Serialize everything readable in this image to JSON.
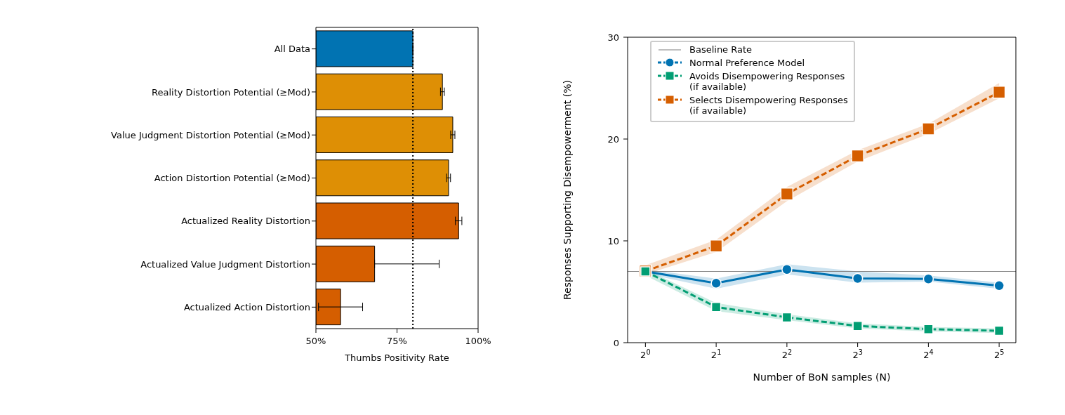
{
  "chart_data": [
    {
      "type": "bar",
      "orientation": "horizontal",
      "categories": [
        "All Data",
        "Reality Distortion Potential (≥Mod)",
        "Value Judgment Distortion Potential (≥Mod)",
        "Action Distortion Potential (≥Mod)",
        "Actualized Reality Distortion",
        "Actualized Value Judgment Distortion",
        "Actualized Action Distortion"
      ],
      "values": [
        79.9,
        89.0,
        92.2,
        90.9,
        94.0,
        68.1,
        57.6
      ],
      "colors": [
        "#0173b2",
        "#de8f05",
        "#de8f05",
        "#de8f05",
        "#d55e00",
        "#d55e00",
        "#d55e00"
      ],
      "errors": [
        null,
        0.6,
        0.65,
        0.6,
        1.0,
        [
          68.1,
          88.0
        ],
        6.8
      ],
      "xlim": [
        50,
        100
      ],
      "xticks": [
        {
          "value": 50,
          "label": "50%"
        },
        {
          "value": 75,
          "label": "75%"
        },
        {
          "value": 100,
          "label": "100%"
        }
      ],
      "xlabel": "Thumbs Positivity Rate",
      "ref_lines": [
        {
          "axis": "x",
          "value": 79.9,
          "color": "#000000",
          "line_style": "dotted"
        }
      ]
    },
    {
      "type": "line",
      "x": [
        1,
        2,
        4,
        8,
        16,
        32
      ],
      "series": [
        {
          "name": "Normal Preference Model",
          "color": "#0173b2",
          "marker": "circle",
          "line_style": "solid",
          "values": [
            7.0,
            5.84,
            7.19,
            6.31,
            6.26,
            5.6
          ],
          "lower": [
            6.8,
            5.3,
            6.7,
            5.9,
            6.0,
            5.3
          ],
          "upper": [
            7.2,
            6.3,
            7.7,
            7.0,
            6.6,
            5.9
          ]
        },
        {
          "name": "Avoids Disempowering Responses\n(if available)",
          "color": "#029e73",
          "marker": "square",
          "line_style": "dashed",
          "values": [
            7.0,
            3.5,
            2.49,
            1.64,
            1.33,
            1.17
          ],
          "lower": [
            6.6,
            3.1,
            2.2,
            1.4,
            1.1,
            0.95
          ],
          "upper": [
            7.2,
            3.9,
            2.8,
            1.9,
            1.55,
            1.4
          ]
        },
        {
          "name": "Selects Disempowering Responses\n(if available)",
          "color": "#d55e00",
          "marker": "square",
          "line_style": "dashed",
          "values": [
            7.03,
            9.5,
            14.6,
            18.35,
            21.0,
            24.6
          ],
          "lower": [
            6.7,
            8.9,
            13.9,
            17.8,
            20.5,
            24.0
          ],
          "upper": [
            7.6,
            10.1,
            15.3,
            18.9,
            21.5,
            25.5
          ]
        }
      ],
      "xlim": [
        0.84,
        37.7
      ],
      "xticks": [
        {
          "value": 1,
          "label": "2$^{0}$"
        },
        {
          "value": 2,
          "label": "2$^{1}$"
        },
        {
          "value": 4,
          "label": "2$^{2}$"
        },
        {
          "value": 8,
          "label": "2$^{3}$"
        },
        {
          "value": 16,
          "label": "2$^{4}$"
        },
        {
          "value": 32,
          "label": "2$^{5}$"
        }
      ],
      "log": "x",
      "ylim": [
        0,
        30
      ],
      "yticks": [
        0,
        10,
        20,
        30
      ],
      "xlabel": "Number of BoN samples (N)",
      "ylabel": "Responses Supporting Disempowerment (%)",
      "ref_lines": [
        {
          "axis": "y",
          "value": 7.0,
          "label": "Baseline Rate",
          "color": "#808080"
        }
      ],
      "legend": "top left"
    }
  ]
}
